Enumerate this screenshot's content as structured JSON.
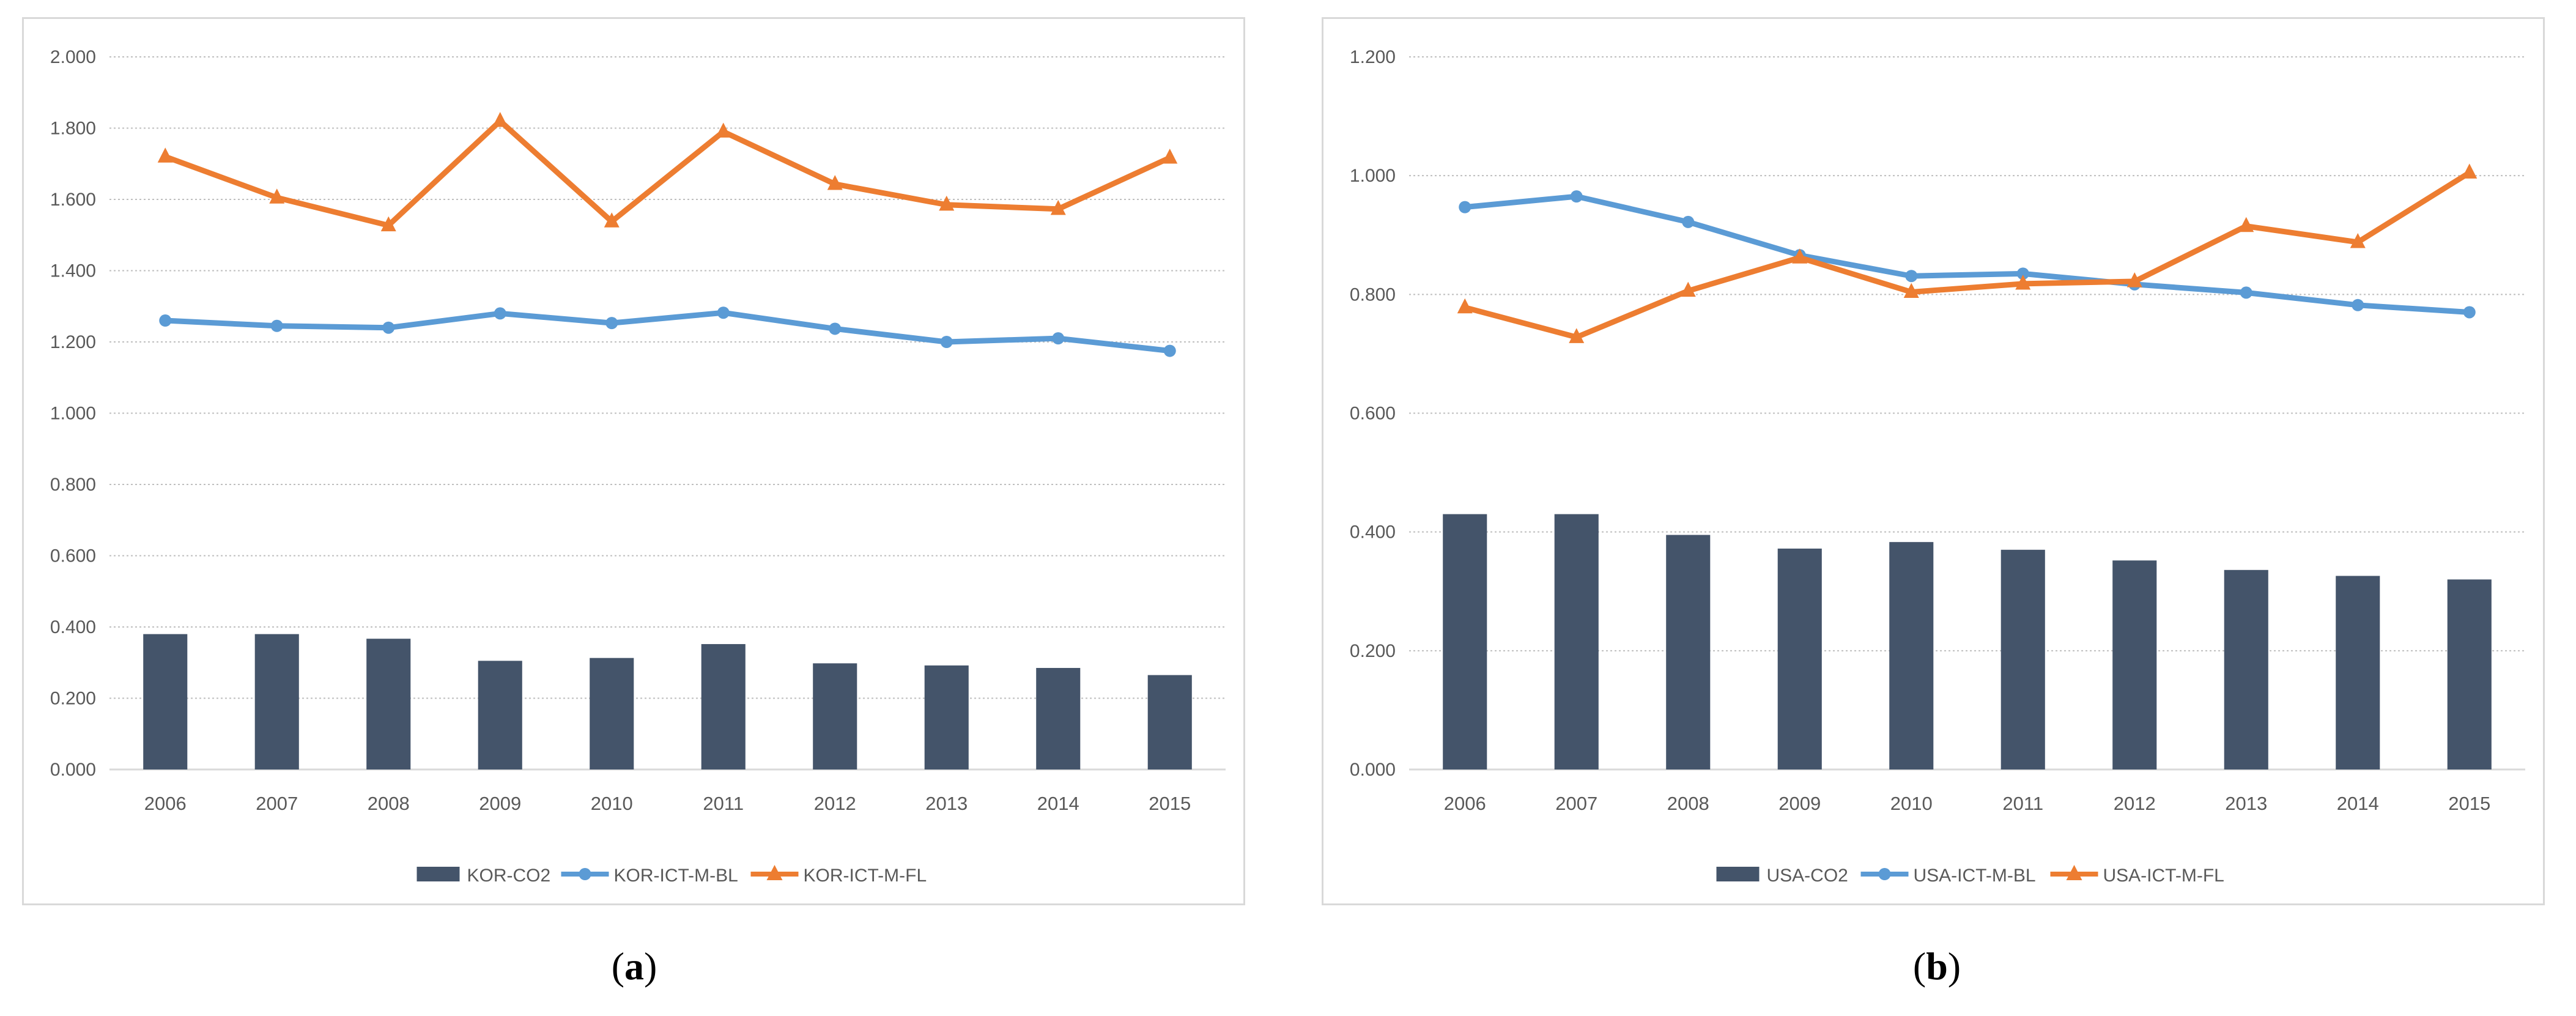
{
  "chart_data": [
    {
      "type": "bar+line",
      "panel_label": "a",
      "categories": [
        "2006",
        "2007",
        "2008",
        "2009",
        "2010",
        "2011",
        "2012",
        "2013",
        "2014",
        "2015"
      ],
      "ylim": [
        0,
        2.0
      ],
      "yticks": [
        "0.000",
        "0.200",
        "0.400",
        "0.600",
        "0.800",
        "1.000",
        "1.200",
        "1.400",
        "1.600",
        "1.800",
        "2.000"
      ],
      "grid": true,
      "legend_position": "bottom",
      "series": [
        {
          "name": "KOR-CO2",
          "kind": "bar",
          "color": "#44546a",
          "values": [
            0.38,
            0.38,
            0.367,
            0.305,
            0.313,
            0.352,
            0.298,
            0.292,
            0.285,
            0.265
          ]
        },
        {
          "name": "KOR-ICT-M-BL",
          "kind": "line",
          "marker": "circle",
          "color": "#5b9bd5",
          "values": [
            1.26,
            1.245,
            1.24,
            1.28,
            1.253,
            1.282,
            1.237,
            1.2,
            1.21,
            1.175
          ]
        },
        {
          "name": "KOR-ICT-M-FL",
          "kind": "line",
          "marker": "triangle",
          "color": "#ed7d31",
          "values": [
            1.72,
            1.605,
            1.527,
            1.82,
            1.538,
            1.79,
            1.643,
            1.585,
            1.573,
            1.717
          ]
        }
      ]
    },
    {
      "type": "bar+line",
      "panel_label": "b",
      "categories": [
        "2006",
        "2007",
        "2008",
        "2009",
        "2010",
        "2011",
        "2012",
        "2013",
        "2014",
        "2015"
      ],
      "ylim": [
        0,
        1.2
      ],
      "yticks": [
        "0.000",
        "0.200",
        "0.400",
        "0.600",
        "0.800",
        "1.000",
        "1.200"
      ],
      "grid": true,
      "legend_position": "bottom",
      "series": [
        {
          "name": "USA-CO2",
          "kind": "bar",
          "color": "#44546a",
          "values": [
            0.43,
            0.43,
            0.395,
            0.372,
            0.383,
            0.37,
            0.352,
            0.336,
            0.326,
            0.32
          ]
        },
        {
          "name": "USA-ICT-M-BL",
          "kind": "line",
          "marker": "circle",
          "color": "#5b9bd5",
          "values": [
            0.947,
            0.965,
            0.922,
            0.866,
            0.831,
            0.835,
            0.817,
            0.803,
            0.782,
            0.77
          ]
        },
        {
          "name": "USA-ICT-M-FL",
          "kind": "line",
          "marker": "triangle",
          "color": "#ed7d31",
          "values": [
            0.778,
            0.728,
            0.806,
            0.862,
            0.804,
            0.818,
            0.822,
            0.915,
            0.888,
            1.005
          ]
        }
      ]
    }
  ],
  "captions": {
    "a": "a",
    "b": "b"
  }
}
